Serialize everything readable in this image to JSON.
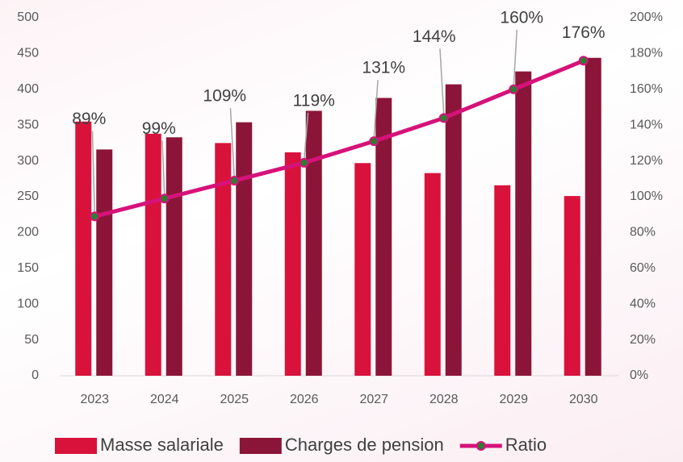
{
  "chart_data": {
    "type": "bar",
    "categories": [
      "2023",
      "2024",
      "2025",
      "2026",
      "2027",
      "2028",
      "2029",
      "2030"
    ],
    "series": [
      {
        "name": "Masse salariale",
        "color": "#d9123c",
        "values": [
          355,
          338,
          325,
          312,
          297,
          283,
          266,
          251
        ]
      },
      {
        "name": "Charges de pension",
        "color": "#8b1538",
        "values": [
          316,
          333,
          354,
          370,
          388,
          407,
          425,
          444
        ]
      },
      {
        "name": "Ratio",
        "type": "line",
        "axis": "y2",
        "color": "#d6127a",
        "marker_color": "#2e7d32",
        "values": [
          89,
          99,
          109,
          119,
          131,
          144,
          160,
          176
        ],
        "value_labels": [
          "89%",
          "99%",
          "109%",
          "119%",
          "131%",
          "144%",
          "160%",
          "176%"
        ]
      }
    ],
    "ylim": [
      0,
      500
    ],
    "yticks": [
      0,
      50,
      100,
      150,
      200,
      250,
      300,
      350,
      400,
      450,
      500
    ],
    "y2lim": [
      0,
      200
    ],
    "y2ticks": [
      {
        "value": 0,
        "label": "0%"
      },
      {
        "value": 20,
        "label": "20%"
      },
      {
        "value": 40,
        "label": "40%"
      },
      {
        "value": 60,
        "label": "60%"
      },
      {
        "value": 80,
        "label": "80%"
      },
      {
        "value": 100,
        "label": "100%"
      },
      {
        "value": 120,
        "label": "120%"
      },
      {
        "value": 140,
        "label": "140%"
      },
      {
        "value": 160,
        "label": "160%"
      },
      {
        "value": 180,
        "label": "180%"
      },
      {
        "value": 200,
        "label": "200%"
      }
    ],
    "legend": "bottom"
  }
}
